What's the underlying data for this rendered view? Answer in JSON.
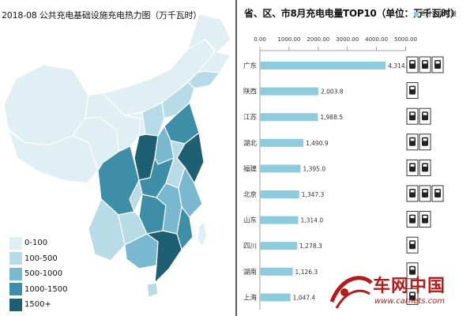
{
  "colors": {
    "lightest": "#dfeff4",
    "light": "#b8dbe8",
    "medium": "#7ab8d0",
    "dark": "#3f8ea8",
    "darkest": "#1f5f73",
    "bar": "#8ecbdc",
    "border": "#ffffff",
    "watermark": "#b11c1c",
    "divider": "#5c5c5c"
  },
  "map": {
    "title": "2018-08 公共充电基础设施充电热力图（万千瓦时）",
    "legend": [
      {
        "label": "0-100",
        "color_key": "lightest"
      },
      {
        "label": "100-500",
        "color_key": "light"
      },
      {
        "label": "500-1000",
        "color_key": "medium"
      },
      {
        "label": "1000-1500",
        "color_key": "dark"
      },
      {
        "label": "1500+",
        "color_key": "darkest"
      }
    ]
  },
  "bar_chart": {
    "title": "省、区、市8月充电电量TOP10（单位：万千瓦时）",
    "legend_label": "8月充电电量"
  },
  "chart_data": [
    {
      "type": "bar",
      "orientation": "horizontal",
      "title": "省、区、市8月充电电量TOP10（单位：万千瓦时）",
      "categories": [
        "广东",
        "陕西",
        "江苏",
        "湖北",
        "福建",
        "北京",
        "山东",
        "四川",
        "湖南",
        "上海"
      ],
      "series": [
        {
          "name": "8月充电电量",
          "values": [
            4314.8,
            2003.8,
            1988.5,
            1490.9,
            1395.0,
            1347.3,
            1314.0,
            1278.3,
            1126.3,
            1047.4
          ],
          "labels": [
            "4,314.8",
            "2,003.8",
            "1,988.5",
            "1,490.9",
            "1,395.0",
            "1,347.3",
            "1,314.0",
            "1,278.3",
            "1,126.3",
            "1,047.4"
          ]
        }
      ],
      "xlim": [
        0,
        5000
      ],
      "xticks": [
        "0.00",
        "1000.00",
        "2000.00",
        "3000.00",
        "4000.00",
        "5000.00"
      ],
      "legend_position": "top-right",
      "grid": false,
      "icon_counts": [
        3,
        1,
        2,
        2,
        2,
        3,
        2,
        1,
        1,
        1
      ]
    },
    {
      "type": "heatmap",
      "title": "2018-08 公共充电基础设施充电热力图（万千瓦时）",
      "legend": [
        "0-100",
        "100-500",
        "500-1000",
        "1000-1500",
        "1500+"
      ]
    }
  ],
  "watermark": {
    "text": "车网中国",
    "url": "www.carnets.com"
  }
}
